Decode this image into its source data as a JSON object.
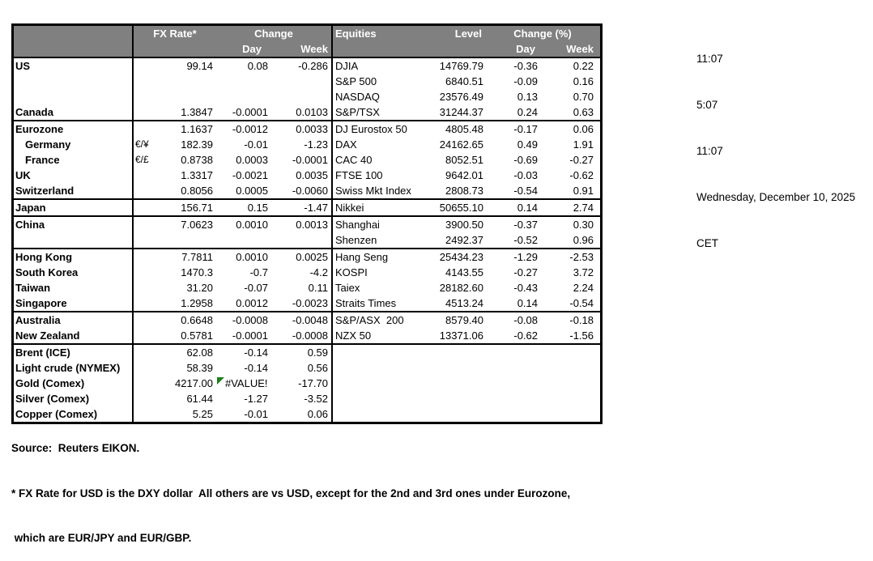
{
  "header": {
    "fx_rate": "FX Rate*",
    "change": "Change",
    "day_fx": "Day",
    "week_fx": "Week",
    "equities": "Equities",
    "level": "Level",
    "change_pct": "Change (%)",
    "day_eq": "Day",
    "week_eq": "Week"
  },
  "colors": {
    "header_bg": "#808080",
    "header_text": "#ffffff",
    "error_flag_green": "#1e7d1e",
    "border": "#000000"
  },
  "table": {
    "rows": [
      {
        "name": "US",
        "pair": "",
        "fx_rate": "99.14",
        "fx_day": "0.08",
        "fx_week": "-0.286",
        "equity": "DJIA",
        "level": "14769.79",
        "eq_day": "-0.36",
        "eq_week": "0.22",
        "indent": false,
        "sep_after": false,
        "fx_day_error": false
      },
      {
        "name": "",
        "pair": "",
        "fx_rate": "",
        "fx_day": "",
        "fx_week": "",
        "equity": "S&P 500",
        "level": "6840.51",
        "eq_day": "-0.09",
        "eq_week": "0.16",
        "indent": false,
        "sep_after": false,
        "fx_day_error": false
      },
      {
        "name": "",
        "pair": "",
        "fx_rate": "",
        "fx_day": "",
        "fx_week": "",
        "equity": "NASDAQ",
        "level": "23576.49",
        "eq_day": "0.13",
        "eq_week": "0.70",
        "indent": false,
        "sep_after": false,
        "fx_day_error": false
      },
      {
        "name": "Canada",
        "pair": "",
        "fx_rate": "1.3847",
        "fx_day": "-0.0001",
        "fx_week": "0.0103",
        "equity": "S&P/TSX",
        "level": "31244.37",
        "eq_day": "0.24",
        "eq_week": "0.63",
        "indent": false,
        "sep_after": true,
        "fx_day_error": false
      },
      {
        "name": "Eurozone",
        "pair": "",
        "fx_rate": "1.1637",
        "fx_day": "-0.0012",
        "fx_week": "0.0033",
        "equity": "DJ Eurostox 50",
        "level": "4805.48",
        "eq_day": "-0.17",
        "eq_week": "0.06",
        "indent": false,
        "sep_after": false,
        "fx_day_error": false
      },
      {
        "name": "Germany",
        "pair": "€/¥",
        "fx_rate": "182.39",
        "fx_day": "-0.01",
        "fx_week": "-1.23",
        "equity": "DAX",
        "level": "24162.65",
        "eq_day": "0.49",
        "eq_week": "1.91",
        "indent": true,
        "sep_after": false,
        "fx_day_error": false
      },
      {
        "name": "France",
        "pair": "€/£",
        "fx_rate": "0.8738",
        "fx_day": "0.0003",
        "fx_week": "-0.0001",
        "equity": "CAC 40",
        "level": "8052.51",
        "eq_day": "-0.69",
        "eq_week": "-0.27",
        "indent": true,
        "sep_after": false,
        "fx_day_error": false
      },
      {
        "name": "UK",
        "pair": "",
        "fx_rate": "1.3317",
        "fx_day": "-0.0021",
        "fx_week": "0.0035",
        "equity": "FTSE 100",
        "level": "9642.01",
        "eq_day": "-0.03",
        "eq_week": "-0.62",
        "indent": false,
        "sep_after": false,
        "fx_day_error": false
      },
      {
        "name": "Switzerland",
        "pair": "",
        "fx_rate": "0.8056",
        "fx_day": "0.0005",
        "fx_week": "-0.0060",
        "equity": "Swiss Mkt Index",
        "level": "2808.73",
        "eq_day": "-0.54",
        "eq_week": "0.91",
        "indent": false,
        "sep_after": true,
        "fx_day_error": false
      },
      {
        "name": "Japan",
        "pair": "",
        "fx_rate": "156.71",
        "fx_day": "0.15",
        "fx_week": "-1.47",
        "equity": "Nikkei",
        "level": "50655.10",
        "eq_day": "0.14",
        "eq_week": "2.74",
        "indent": false,
        "sep_after": true,
        "fx_day_error": false
      },
      {
        "name": "China",
        "pair": "",
        "fx_rate": "7.0623",
        "fx_day": "0.0010",
        "fx_week": "0.0013",
        "equity": "Shanghai",
        "level": "3900.50",
        "eq_day": "-0.37",
        "eq_week": "0.30",
        "indent": false,
        "sep_after": false,
        "fx_day_error": false
      },
      {
        "name": "",
        "pair": "",
        "fx_rate": "",
        "fx_day": "",
        "fx_week": "",
        "equity": "Shenzen",
        "level": "2492.37",
        "eq_day": "-0.52",
        "eq_week": "0.96",
        "indent": false,
        "sep_after": true,
        "fx_day_error": false
      },
      {
        "name": "Hong Kong",
        "pair": "",
        "fx_rate": "7.7811",
        "fx_day": "0.0010",
        "fx_week": "0.0025",
        "equity": "Hang Seng",
        "level": "25434.23",
        "eq_day": "-1.29",
        "eq_week": "-2.53",
        "indent": false,
        "sep_after": false,
        "fx_day_error": false
      },
      {
        "name": "South Korea",
        "pair": "",
        "fx_rate": "1470.3",
        "fx_day": "-0.7",
        "fx_week": "-4.2",
        "equity": "KOSPI",
        "level": "4143.55",
        "eq_day": "-0.27",
        "eq_week": "3.72",
        "indent": false,
        "sep_after": false,
        "fx_day_error": false
      },
      {
        "name": "Taiwan",
        "pair": "",
        "fx_rate": "31.20",
        "fx_day": "-0.07",
        "fx_week": "0.11",
        "equity": "Taiex",
        "level": "28182.60",
        "eq_day": "-0.43",
        "eq_week": "2.24",
        "indent": false,
        "sep_after": false,
        "fx_day_error": false
      },
      {
        "name": "Singapore",
        "pair": "",
        "fx_rate": "1.2958",
        "fx_day": "0.0012",
        "fx_week": "-0.0023",
        "equity": "Straits Times",
        "level": "4513.24",
        "eq_day": "0.14",
        "eq_week": "-0.54",
        "indent": false,
        "sep_after": true,
        "fx_day_error": false
      },
      {
        "name": "Australia",
        "pair": "",
        "fx_rate": "0.6648",
        "fx_day": "-0.0008",
        "fx_week": "-0.0048",
        "equity": "S&P/ASX  200",
        "level": "8579.40",
        "eq_day": "-0.08",
        "eq_week": "-0.18",
        "indent": false,
        "sep_after": false,
        "fx_day_error": false
      },
      {
        "name": "New Zealand",
        "pair": "",
        "fx_rate": "0.5781",
        "fx_day": "-0.0001",
        "fx_week": "-0.0008",
        "equity": "NZX 50",
        "level": "13371.06",
        "eq_day": "-0.62",
        "eq_week": "-1.56",
        "indent": false,
        "sep_after": true,
        "fx_day_error": false
      },
      {
        "name": "Brent (ICE)",
        "pair": "",
        "fx_rate": "62.08",
        "fx_day": "-0.14",
        "fx_week": "0.59",
        "equity": "",
        "level": "",
        "eq_day": "",
        "eq_week": "",
        "indent": false,
        "sep_after": false,
        "fx_day_error": false
      },
      {
        "name": "Light crude (NYMEX)",
        "pair": "",
        "fx_rate": "58.39",
        "fx_day": "-0.14",
        "fx_week": "0.56",
        "equity": "",
        "level": "",
        "eq_day": "",
        "eq_week": "",
        "indent": false,
        "sep_after": false,
        "fx_day_error": false
      },
      {
        "name": "Gold (Comex)",
        "pair": "",
        "fx_rate": "4217.00",
        "fx_day": "#VALUE!",
        "fx_week": "-17.70",
        "equity": "",
        "level": "",
        "eq_day": "",
        "eq_week": "",
        "indent": false,
        "sep_after": false,
        "fx_day_error": true
      },
      {
        "name": "Silver (Comex)",
        "pair": "",
        "fx_rate": "61.44",
        "fx_day": "-1.27",
        "fx_week": "-3.52",
        "equity": "",
        "level": "",
        "eq_day": "",
        "eq_week": "",
        "indent": false,
        "sep_after": false,
        "fx_day_error": false
      },
      {
        "name": "Copper (Comex)",
        "pair": "",
        "fx_rate": "5.25",
        "fx_day": "-0.01",
        "fx_week": "0.06",
        "equity": "",
        "level": "",
        "eq_day": "",
        "eq_week": "",
        "indent": false,
        "sep_after": false,
        "fx_day_error": false
      }
    ]
  },
  "sidebar": {
    "lines": [
      "11:07",
      "5:07",
      "11:07",
      "Wednesday, December 10, 2025",
      "CET"
    ]
  },
  "footer": {
    "source": "Source:  Reuters EIKON.",
    "note1": "* FX Rate for USD is the DXY dollar  All others are vs USD, except for the 2nd and 3rd ones under Eurozone,",
    "note2": " which are EUR/JPY and EUR/GBP."
  }
}
